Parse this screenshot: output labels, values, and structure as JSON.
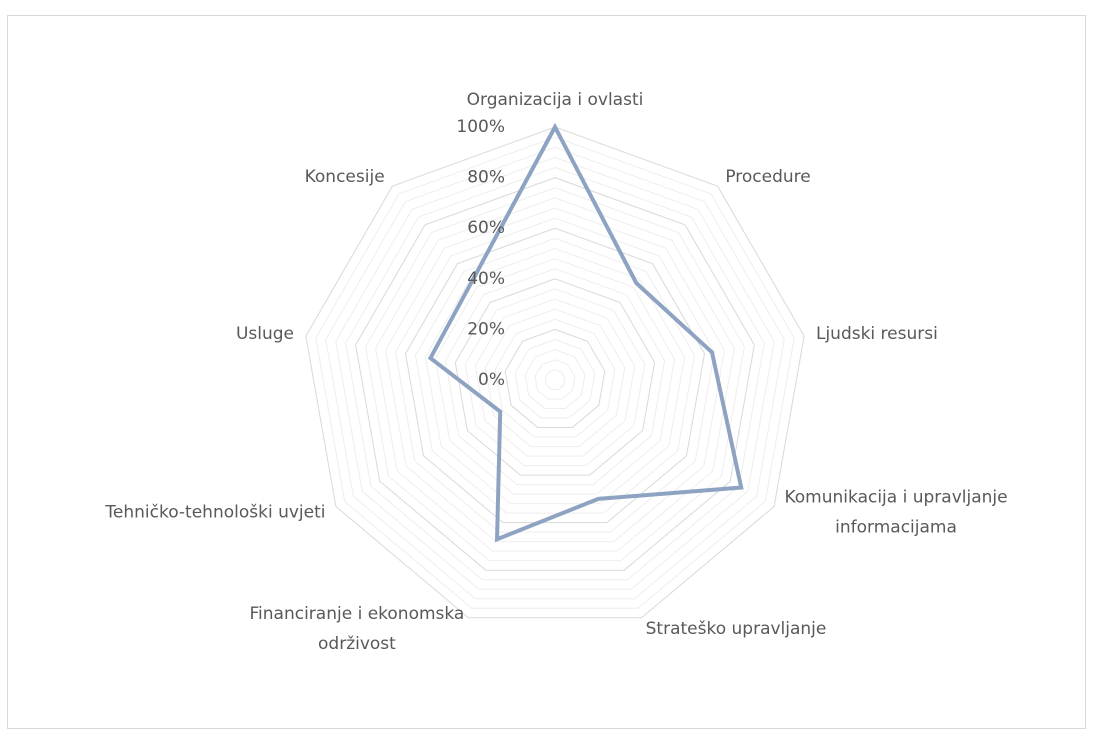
{
  "chart_data": {
    "type": "radar",
    "categories": [
      "Organizacija i ovlasti",
      "Procedure",
      "Ljudski resursi",
      "Komunikacija i upravljanje\ninformacijama",
      "Strateško upravljanje",
      "Financiranje i ekonomska\nodrživost",
      "Tehničko-tehnološki uvjeti",
      "Usluge",
      "Koncesije"
    ],
    "values": [
      100,
      50,
      63,
      85,
      50,
      67,
      25,
      50,
      51
    ],
    "color": "#8ea3c2",
    "ylim": [
      0,
      100
    ],
    "yticks": [
      {
        "value": 0,
        "label": "0%"
      },
      {
        "value": 20,
        "label": "20%"
      },
      {
        "value": 40,
        "label": "40%"
      },
      {
        "value": 60,
        "label": "60%"
      },
      {
        "value": 80,
        "label": "80%"
      },
      {
        "value": 100,
        "label": "100%"
      }
    ],
    "grid": true
  }
}
